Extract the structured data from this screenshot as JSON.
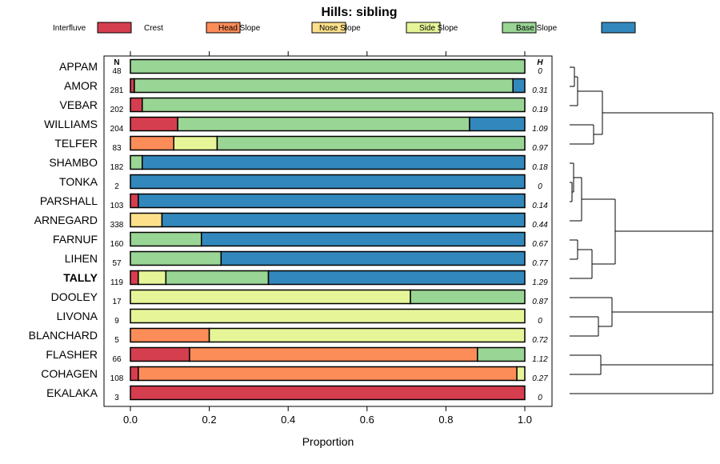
{
  "chart_data": {
    "type": "bar",
    "orientation": "horizontal",
    "stacked": true,
    "title": "Hills: sibling",
    "xlabel": "Proportion",
    "ylabel": "",
    "xlim": [
      0,
      1
    ],
    "xticks": [
      "0.0",
      "0.2",
      "0.4",
      "0.6",
      "0.8",
      "1.0"
    ],
    "legend": {
      "placement": "top",
      "entries": [
        "Interfluve",
        "Crest",
        "Head Slope",
        "Nose Slope",
        "Side Slope",
        "Base Slope"
      ]
    },
    "colors": [
      "#d53e4f",
      "#fc8d59",
      "#fee08b",
      "#e6f598",
      "#99d594",
      "#3288bd"
    ],
    "n_header": "N",
    "h_header": "H",
    "highlight": "TALLY",
    "categories": [
      "APPAM",
      "AMOR",
      "VEBAR",
      "WILLIAMS",
      "TELFER",
      "SHAMBO",
      "TONKA",
      "PARSHALL",
      "ARNEGARD",
      "FARNUF",
      "LIHEN",
      "TALLY",
      "DOOLEY",
      "LIVONA",
      "BLANCHARD",
      "FLASHER",
      "COHAGEN",
      "EKALAKA"
    ],
    "n": [
      "48",
      "281",
      "202",
      "204",
      "83",
      "182",
      "2",
      "103",
      "338",
      "160",
      "57",
      "119",
      "17",
      "9",
      "5",
      "66",
      "108",
      "3"
    ],
    "h": [
      "0",
      "0.31",
      "0.19",
      "1.09",
      "0.97",
      "0.18",
      "0",
      "0.14",
      "0.44",
      "0.67",
      "0.77",
      "1.29",
      "0.87",
      "0",
      "0.72",
      "1.12",
      "0.27",
      "0"
    ],
    "series": [
      {
        "name": "Interfluve",
        "values": [
          0,
          0.01,
          0.03,
          0.12,
          0,
          0,
          0,
          0.02,
          0,
          0,
          0,
          0.02,
          0,
          0,
          0,
          0.15,
          0.02,
          1.0
        ]
      },
      {
        "name": "Crest",
        "values": [
          0,
          0,
          0,
          0,
          0.11,
          0,
          0,
          0,
          0,
          0,
          0,
          0,
          0,
          0,
          0.2,
          0.73,
          0.96,
          0
        ]
      },
      {
        "name": "Head Slope",
        "values": [
          0,
          0,
          0,
          0,
          0,
          0,
          0,
          0,
          0.08,
          0,
          0,
          0,
          0,
          0,
          0,
          0,
          0,
          0
        ]
      },
      {
        "name": "Nose Slope",
        "values": [
          0,
          0,
          0,
          0,
          0.11,
          0,
          0,
          0,
          0,
          0,
          0,
          0.07,
          0.71,
          1.0,
          0.8,
          0,
          0.02,
          0
        ]
      },
      {
        "name": "Side Slope",
        "values": [
          1.0,
          0.96,
          0.97,
          0.74,
          0.78,
          0.03,
          0,
          0,
          0,
          0.18,
          0.23,
          0.26,
          0.29,
          0,
          0,
          0.12,
          0,
          0
        ]
      },
      {
        "name": "Base Slope",
        "values": [
          0,
          0.03,
          0,
          0.14,
          0,
          0.97,
          1.0,
          0.98,
          0.92,
          0.82,
          0.77,
          0.65,
          0,
          0,
          0,
          0,
          0,
          0
        ]
      }
    ],
    "dendrogram": [
      [
        [
          0,
          1
        ],
        0.015
      ],
      [
        [
          0,
          1
        ],
        0.04
      ],
      [
        [
          2,
          3
        ],
        0.08
      ],
      [
        [
          4,
          5
        ],
        0.16
      ],
      [
        [
          6,
          7
        ],
        0.01
      ],
      [
        [
          6,
          7
        ],
        0.04
      ],
      [
        [
          8,
          9
        ],
        0.08
      ],
      [
        [
          10,
          11
        ],
        0.08
      ],
      [
        [
          12,
          13
        ],
        0.13
      ],
      [
        [
          14,
          15
        ],
        0.24
      ],
      [
        [
          16,
          17
        ],
        0.05
      ],
      [
        [
          16,
          17
        ],
        0.14
      ],
      [
        [
          16,
          17
        ],
        0.12
      ],
      [
        [
          16,
          17
        ],
        0.2
      ]
    ]
  }
}
